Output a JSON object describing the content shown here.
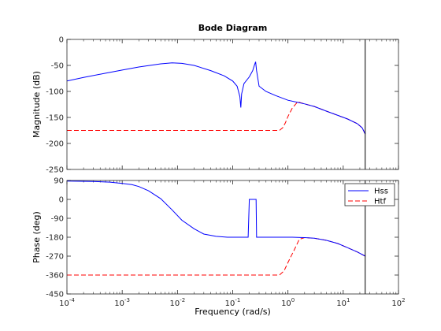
{
  "chart_data": {
    "type": "line",
    "title": "Bode Diagram",
    "xlabel": "Frequency  (rad/s)",
    "x_scale": "log",
    "xlim": [
      0.0001,
      100
    ],
    "x_ticks": [
      0.0001,
      0.001,
      0.01,
      0.1,
      1,
      10,
      100
    ],
    "x_tick_labels": [
      {
        "base": "10",
        "exp": "-4"
      },
      {
        "base": "10",
        "exp": "-3"
      },
      {
        "base": "10",
        "exp": "-2"
      },
      {
        "base": "10",
        "exp": "-1"
      },
      {
        "base": "10",
        "exp": "0"
      },
      {
        "base": "10",
        "exp": "1"
      },
      {
        "base": "10",
        "exp": "2"
      }
    ],
    "vertical_line_x": 25,
    "legend": {
      "placement": "top-right of phase plot",
      "entries": [
        {
          "name": "Hss",
          "color": "#0000ff",
          "style": "solid"
        },
        {
          "name": "Htf",
          "color": "#ff0000",
          "style": "dashed"
        }
      ]
    },
    "panels": [
      {
        "ylabel": "Magnitude (dB)",
        "ylim": [
          -250,
          0
        ],
        "y_ticks": [
          0,
          -50,
          -100,
          -150,
          -200,
          -250
        ],
        "y_tick_labels": [
          "0",
          "-50",
          "-100",
          "-150",
          "-200",
          "-250"
        ],
        "series": [
          {
            "name": "Hss",
            "x": [
              0.0001,
              0.0002,
              0.0005,
              0.001,
              0.002,
              0.005,
              0.008,
              0.012,
              0.02,
              0.04,
              0.07,
              0.1,
              0.12,
              0.135,
              0.14,
              0.145,
              0.16,
              0.2,
              0.23,
              0.25,
              0.26,
              0.27,
              0.3,
              0.4,
              0.6,
              1,
              1.5,
              2,
              3,
              5,
              8,
              12,
              18,
              22,
              25
            ],
            "y": [
              -80,
              -73,
              -65,
              -59,
              -53,
              -47,
              -45,
              -46,
              -50,
              -60,
              -70,
              -80,
              -90,
              -110,
              -131,
              -105,
              -85,
              -72,
              -60,
              -48,
              -43,
              -60,
              -90,
              -100,
              -108,
              -117,
              -121,
              -124,
              -129,
              -138,
              -146,
              -153,
              -162,
              -170,
              -182
            ]
          },
          {
            "name": "Htf",
            "x": [
              0.0001,
              0.001,
              0.01,
              0.1,
              0.5,
              0.7,
              0.8,
              0.9,
              1,
              1.2,
              1.5,
              2,
              3,
              5,
              8,
              12,
              18,
              22,
              25
            ],
            "y": [
              -175,
              -175,
              -175,
              -175,
              -175,
              -175,
              -170,
              -160,
              -148,
              -132,
              -120,
              -124,
              -129,
              -138,
              -146,
              -153,
              -162,
              -170,
              -182
            ]
          }
        ]
      },
      {
        "ylabel": "Phase (deg)",
        "ylim": [
          -450,
          90
        ],
        "y_ticks": [
          90,
          0,
          -90,
          -180,
          -270,
          -360,
          -450
        ],
        "y_tick_labels": [
          "90",
          "0",
          "-90",
          "-180",
          "-270",
          "-360",
          "-450"
        ],
        "series": [
          {
            "name": "Hss",
            "x": [
              0.0001,
              0.0003,
              0.0006,
              0.001,
              0.0015,
              0.002,
              0.003,
              0.005,
              0.008,
              0.012,
              0.02,
              0.03,
              0.05,
              0.08,
              0.1,
              0.12,
              0.14,
              0.15,
              0.19,
              0.2,
              0.25,
              0.265,
              0.27,
              0.35,
              0.5,
              0.8,
              1.2,
              2,
              3,
              5,
              8,
              12,
              18,
              25
            ],
            "y": [
              87,
              85,
              82,
              76,
              70,
              61,
              41,
              3,
              -50,
              -99,
              -140,
              -165,
              -176,
              -180,
              -180,
              -180,
              -180,
              -180,
              -180,
              0,
              0,
              0,
              -180,
              -180,
              -180,
              -180,
              -180,
              -182,
              -185,
              -195,
              -210,
              -230,
              -250,
              -270
            ]
          },
          {
            "name": "Htf",
            "x": [
              0.0001,
              0.001,
              0.01,
              0.1,
              0.5,
              0.7,
              0.85,
              1,
              1.3,
              1.6,
              2,
              3,
              5,
              8,
              12,
              18,
              25
            ],
            "y": [
              -360,
              -360,
              -360,
              -360,
              -360,
              -360,
              -340,
              -300,
              -240,
              -190,
              -182,
              -185,
              -195,
              -210,
              -230,
              -250,
              -270
            ]
          }
        ]
      }
    ]
  }
}
